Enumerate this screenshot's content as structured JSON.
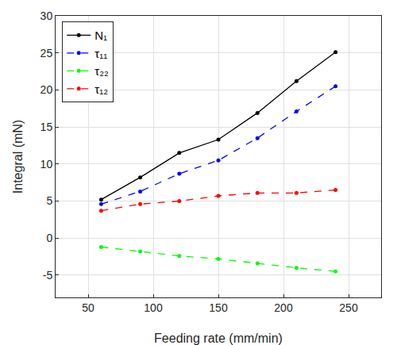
{
  "chart_data": {
    "type": "line",
    "x_label": "Feeding rate (mm/min)",
    "y_label": "Integral (mN)",
    "x": [
      60,
      90,
      120,
      150,
      180,
      210,
      240
    ],
    "series": [
      {
        "name": "N₁",
        "color": "#000000",
        "line_style": "solid",
        "marker": "circle",
        "values": [
          5.2,
          8.2,
          11.5,
          13.3,
          16.9,
          21.2,
          25.1
        ]
      },
      {
        "name": "τ₁₁",
        "color": "#0000ff",
        "line_style": "dash",
        "marker": "circle",
        "values": [
          4.6,
          6.3,
          8.7,
          10.5,
          13.5,
          17.1,
          20.5
        ]
      },
      {
        "name": "τ₂₂",
        "color": "#00ff00",
        "line_style": "dash",
        "marker": "circle",
        "values": [
          -1.2,
          -1.8,
          -2.4,
          -2.8,
          -3.4,
          -4.0,
          -4.5
        ]
      },
      {
        "name": "τ₁₂",
        "color": "#ff0000",
        "line_style": "dash",
        "marker": "circle",
        "values": [
          3.7,
          4.6,
          5.0,
          5.7,
          6.1,
          6.1,
          6.5
        ]
      }
    ],
    "xlim": [
      25,
      275
    ],
    "xticks": [
      50,
      100,
      150,
      200,
      250
    ],
    "ylim": [
      -8,
      30
    ],
    "yticks": [
      -5,
      0,
      5,
      10,
      15,
      20,
      25,
      30
    ],
    "grid": true,
    "legend": "top-left"
  }
}
